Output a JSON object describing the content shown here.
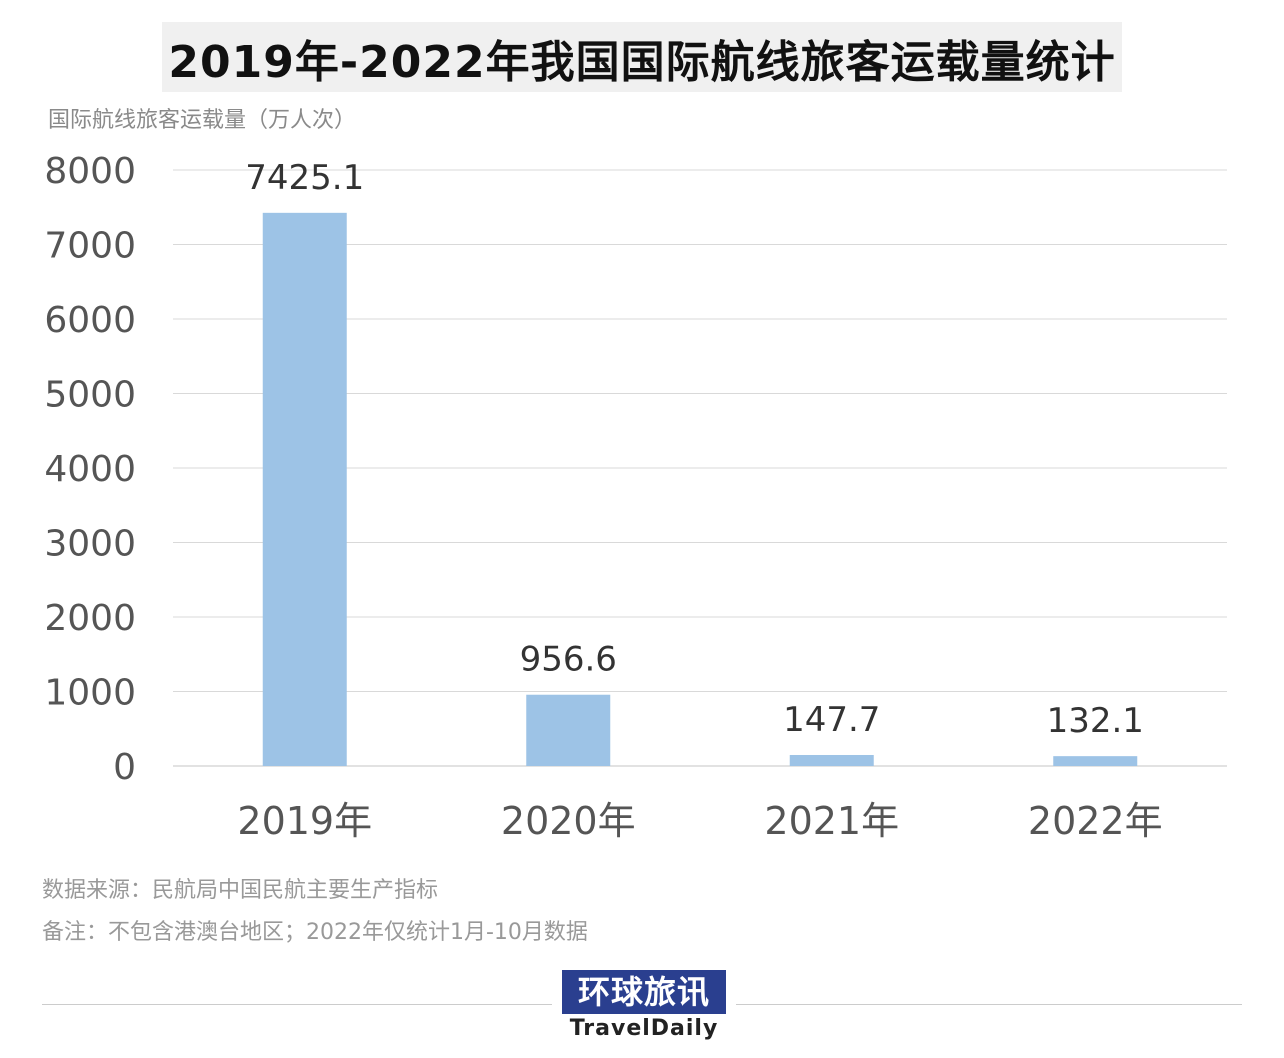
{
  "title": "2019年-2022年我国国际航线旅客运载量统计",
  "chart_data": {
    "type": "bar",
    "ylabel": "国际航线旅客运载量（万人次）",
    "xlabel": "",
    "categories": [
      "2019年",
      "2020年",
      "2021年",
      "2022年"
    ],
    "values": [
      7425.1,
      956.6,
      147.7,
      132.1
    ],
    "data_labels": [
      "7425.1",
      "956.6",
      "147.7",
      "132.1"
    ],
    "ylim": [
      0,
      8000
    ],
    "yticks": [
      0,
      1000,
      2000,
      3000,
      4000,
      5000,
      6000,
      7000,
      8000
    ],
    "ytick_labels": [
      "0",
      "1000",
      "2000",
      "3000",
      "4000",
      "5000",
      "6000",
      "7000",
      "8000"
    ],
    "grid": true,
    "bar_color": "#9dc3e6"
  },
  "footer": {
    "source": "数据来源：民航局中国民航主要生产指标",
    "note": "备注：不包含港澳台地区；2022年仅统计1月-10月数据"
  },
  "logo": {
    "cn": "环球旅讯",
    "en": "TravelDaily",
    "color": "#2a3f8f"
  }
}
